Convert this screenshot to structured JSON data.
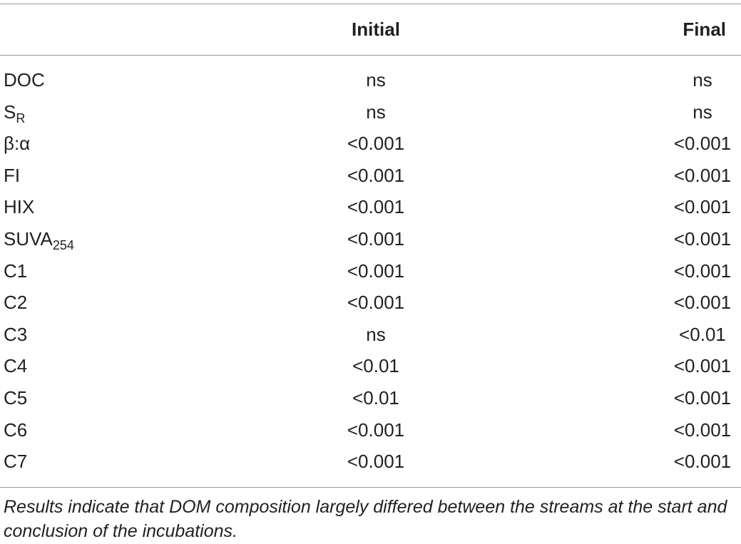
{
  "table": {
    "header": [
      "",
      "Initial",
      "Final"
    ],
    "rows": [
      {
        "label": "DOC",
        "initial": "ns",
        "final": "ns"
      },
      {
        "label": "S",
        "label_sub": "R",
        "initial": "ns",
        "final": "ns"
      },
      {
        "label": "β:α",
        "initial": "<0.001",
        "final": "<0.001"
      },
      {
        "label": "FI",
        "initial": "<0.001",
        "final": "<0.001"
      },
      {
        "label": "HIX",
        "initial": "<0.001",
        "final": "<0.001"
      },
      {
        "label": "SUVA",
        "label_sub": "254",
        "initial": "<0.001",
        "final": "<0.001"
      },
      {
        "label": "C1",
        "initial": "<0.001",
        "final": "<0.001"
      },
      {
        "label": "C2",
        "initial": "<0.001",
        "final": "<0.001"
      },
      {
        "label": "C3",
        "initial": "ns",
        "final": "<0.01"
      },
      {
        "label": "C4",
        "initial": "<0.01",
        "final": "<0.001"
      },
      {
        "label": "C5",
        "initial": "<0.01",
        "final": "<0.001"
      },
      {
        "label": "C6",
        "initial": "<0.001",
        "final": "<0.001"
      },
      {
        "label": "C7",
        "initial": "<0.001",
        "final": "<0.001"
      }
    ],
    "note": "Results indicate that DOM composition largely differed between the streams at the start and conclusion of the incubations."
  }
}
